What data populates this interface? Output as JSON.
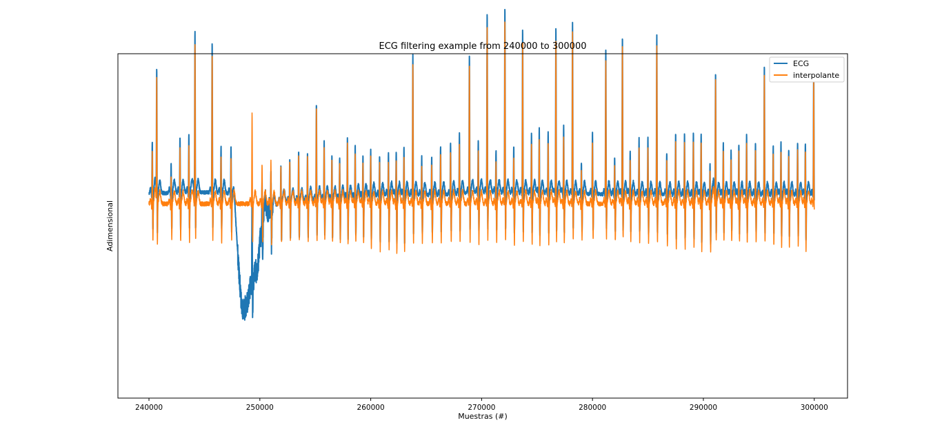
{
  "chart_data": {
    "type": "line",
    "title": "ECG filtering example from 240000 to 300000",
    "xlabel": "Muestras (#)",
    "ylabel": "Adimensional",
    "xlim": [
      237200,
      303000
    ],
    "ylim": [
      -2.2,
      1.7
    ],
    "xticks": [
      240000,
      250000,
      260000,
      270000,
      280000,
      290000,
      300000
    ],
    "xtick_labels": [
      "240000",
      "250000",
      "260000",
      "270000",
      "280000",
      "290000",
      "300000"
    ],
    "yticks_visible": false,
    "grid": false,
    "legend": {
      "position": "top-right",
      "entries": [
        "ECG",
        "interpolante"
      ]
    },
    "series": [
      {
        "name": "ECG",
        "color": "#1f77b4",
        "line_width": 2,
        "x_range": [
          240000,
          300000
        ],
        "beats": [
          [
            240300,
            0.62,
            -0.45
          ],
          [
            240700,
            1.4,
            -0.5
          ],
          [
            242000,
            0.35,
            -0.42
          ],
          [
            242800,
            0.66,
            -0.45
          ],
          [
            243600,
            0.66,
            -0.45
          ],
          [
            244150,
            1.85,
            -0.45
          ],
          [
            245700,
            1.73,
            -0.45
          ],
          [
            246500,
            0.55,
            -0.45
          ],
          [
            247400,
            0.55,
            -0.45
          ],
          [
            249300,
            1.05,
            -0.45
          ],
          [
            250200,
            0.48,
            -0.45
          ],
          [
            251000,
            0.5,
            -0.48
          ],
          [
            251900,
            0.45,
            -0.47
          ],
          [
            252700,
            0.5,
            -0.43
          ],
          [
            253500,
            0.58,
            -0.44
          ],
          [
            254300,
            0.55,
            -0.43
          ],
          [
            255100,
            1.1,
            -0.45
          ],
          [
            255800,
            0.67,
            -0.42
          ],
          [
            256500,
            0.52,
            -0.46
          ],
          [
            257200,
            0.48,
            -0.46
          ],
          [
            257900,
            0.7,
            -0.48
          ],
          [
            258600,
            0.6,
            -0.46
          ],
          [
            259300,
            0.48,
            -0.48
          ],
          [
            260000,
            0.55,
            -0.52
          ],
          [
            260800,
            0.48,
            -0.55
          ],
          [
            261600,
            0.5,
            -0.55
          ],
          [
            262300,
            0.53,
            -0.58
          ],
          [
            263000,
            0.56,
            -0.58
          ],
          [
            263800,
            1.6,
            -0.5
          ],
          [
            264600,
            0.45,
            -0.45
          ],
          [
            265500,
            0.45,
            -0.45
          ],
          [
            266300,
            0.57,
            -0.45
          ],
          [
            267200,
            0.62,
            -0.45
          ],
          [
            268000,
            0.7,
            -0.46
          ],
          [
            268900,
            1.6,
            -0.48
          ],
          [
            269700,
            0.62,
            -0.47
          ],
          [
            270500,
            2.05,
            -0.47
          ],
          [
            271300,
            0.5,
            -0.47
          ],
          [
            272100,
            2.12,
            -0.48
          ],
          [
            272900,
            0.55,
            -0.49
          ],
          [
            273700,
            1.88,
            -0.49
          ],
          [
            274500,
            0.7,
            -0.49
          ],
          [
            275200,
            0.75,
            -0.5
          ],
          [
            276000,
            0.72,
            -0.5
          ],
          [
            276700,
            1.9,
            -0.49
          ],
          [
            277400,
            0.78,
            -0.48
          ],
          [
            278200,
            1.95,
            -0.45
          ],
          [
            279000,
            0.38,
            -0.43
          ],
          [
            280000,
            0.72,
            -0.42
          ],
          [
            281200,
            1.65,
            -0.45
          ],
          [
            282000,
            0.45,
            -0.45
          ],
          [
            282700,
            1.82,
            -0.45
          ],
          [
            283400,
            0.5,
            -0.45
          ],
          [
            284200,
            0.66,
            -0.45
          ],
          [
            285000,
            0.66,
            -0.47
          ],
          [
            285800,
            1.82,
            -0.49
          ],
          [
            286700,
            0.5,
            -0.49
          ],
          [
            287500,
            0.71,
            -0.52
          ],
          [
            288300,
            0.71,
            -0.53
          ],
          [
            289100,
            0.72,
            -0.52
          ],
          [
            289800,
            0.72,
            -0.55
          ],
          [
            290600,
            0.38,
            -0.58
          ],
          [
            291100,
            1.42,
            -0.48
          ],
          [
            291800,
            0.6,
            -0.45
          ],
          [
            292500,
            0.52,
            -0.45
          ],
          [
            293200,
            0.6,
            -0.45
          ],
          [
            293900,
            0.7,
            -0.46
          ],
          [
            294700,
            0.62,
            -0.46
          ],
          [
            295500,
            1.48,
            -0.48
          ],
          [
            296300,
            0.58,
            -0.48
          ],
          [
            297000,
            0.62,
            -0.5
          ],
          [
            297700,
            0.55,
            -0.5
          ],
          [
            298500,
            0.62,
            -0.5
          ],
          [
            299200,
            0.62,
            -0.55
          ],
          [
            299950,
            1.42,
            -0.18
          ]
        ],
        "baseline_drift": [
          [
            240000,
            0.12
          ],
          [
            245000,
            0.13
          ],
          [
            247500,
            0.12
          ],
          [
            248500,
            -1.2
          ],
          [
            249500,
            -0.9
          ],
          [
            250500,
            -0.1
          ],
          [
            252000,
            0.02
          ],
          [
            256000,
            0.05
          ],
          [
            262000,
            0.1
          ],
          [
            266000,
            0.1
          ],
          [
            270000,
            0.13
          ],
          [
            275000,
            0.12
          ],
          [
            280000,
            0.11
          ],
          [
            290000,
            0.1
          ],
          [
            300000,
            0.1
          ]
        ]
      },
      {
        "name": "interpolante",
        "color": "#ff7f0e",
        "line_width": 1.5,
        "x_range": [
          240000,
          300000
        ],
        "note": "same beats with baseline removed"
      }
    ]
  }
}
